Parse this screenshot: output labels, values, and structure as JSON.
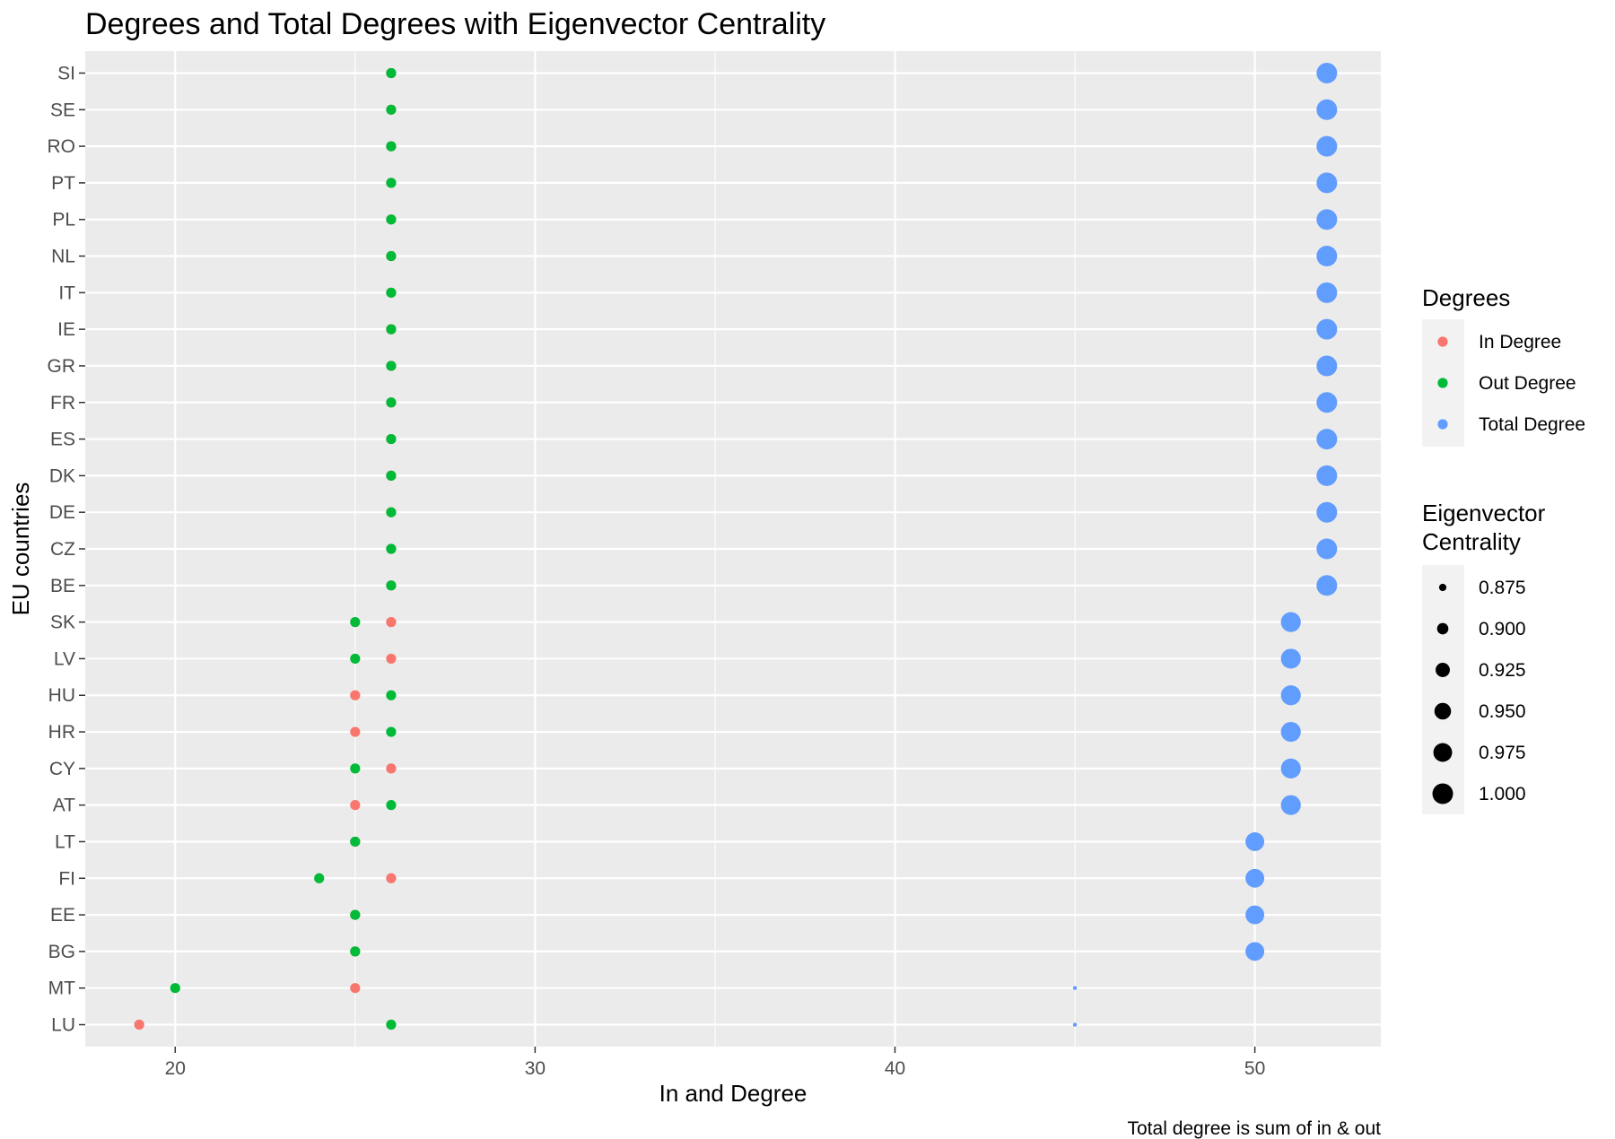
{
  "chart_data": {
    "type": "scatter",
    "title": "Degrees and Total Degrees with Eigenvector Centrality",
    "xlabel": "In and Degree",
    "ylabel": "EU countries",
    "caption": "Total degree is sum of in & out",
    "xlim": [
      17.5,
      53.5
    ],
    "x_ticks": [
      20,
      30,
      40,
      50
    ],
    "grid": true,
    "background": "#ebebeb",
    "categories": [
      "LU",
      "MT",
      "BG",
      "EE",
      "FI",
      "LT",
      "AT",
      "CY",
      "HR",
      "HU",
      "LV",
      "SK",
      "BE",
      "CZ",
      "DE",
      "DK",
      "ES",
      "FR",
      "GR",
      "IE",
      "IT",
      "NL",
      "PL",
      "PT",
      "RO",
      "SE",
      "SI"
    ],
    "series": [
      {
        "name": "In Degree",
        "color": "#F8766D",
        "values": [
          19,
          25,
          25,
          25,
          26,
          25,
          25,
          26,
          25,
          25,
          26,
          26,
          26,
          26,
          26,
          26,
          26,
          26,
          26,
          26,
          26,
          26,
          26,
          26,
          26,
          26,
          26
        ]
      },
      {
        "name": "Out Degree",
        "color": "#00BA38",
        "values": [
          26,
          20,
          25,
          25,
          24,
          25,
          26,
          25,
          26,
          26,
          25,
          25,
          26,
          26,
          26,
          26,
          26,
          26,
          26,
          26,
          26,
          26,
          26,
          26,
          26,
          26,
          26
        ]
      },
      {
        "name": "Total Degree",
        "color": "#619CFF",
        "values": [
          45,
          45,
          50,
          50,
          50,
          50,
          51,
          51,
          51,
          51,
          51,
          51,
          52,
          52,
          52,
          52,
          52,
          52,
          52,
          52,
          52,
          52,
          52,
          52,
          52,
          52,
          52
        ]
      }
    ],
    "eigenvector_centrality": [
      0.862,
      0.862,
      0.975,
      0.975,
      0.975,
      0.975,
      0.99,
      0.99,
      0.99,
      0.99,
      0.99,
      0.99,
      1.0,
      1.0,
      1.0,
      1.0,
      1.0,
      1.0,
      1.0,
      1.0,
      1.0,
      1.0,
      1.0,
      1.0,
      1.0,
      1.0,
      1.0
    ],
    "legend": {
      "placement": "right",
      "color_title": "Degrees",
      "size_title_lines": [
        "Eigenvector",
        "Centrality"
      ],
      "size_breaks": [
        "0.875",
        "0.900",
        "0.925",
        "0.950",
        "0.975",
        "1.000"
      ],
      "size_values": [
        0.875,
        0.9,
        0.925,
        0.95,
        0.975,
        1.0
      ]
    }
  }
}
